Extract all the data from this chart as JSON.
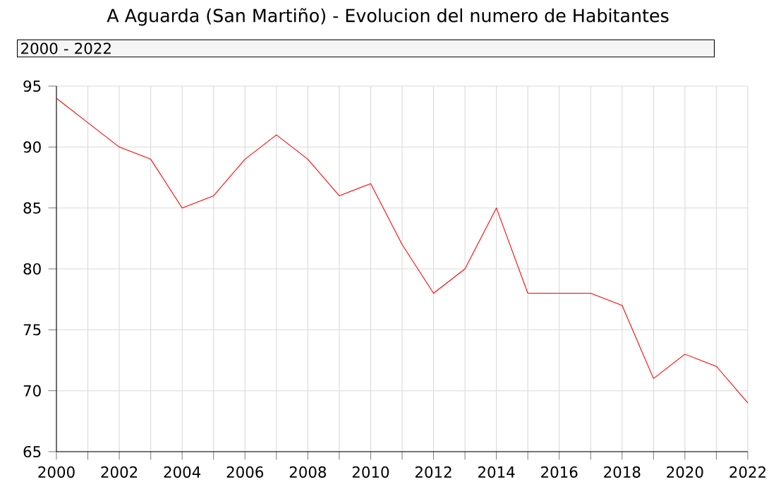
{
  "chart_data": {
    "type": "line",
    "title": "A Aguarda (San Martiño) - Evolucion del numero de Habitantes",
    "annotations": [
      "2000 - 2022"
    ],
    "x": [
      2000,
      2001,
      2002,
      2003,
      2004,
      2005,
      2006,
      2007,
      2008,
      2009,
      2010,
      2011,
      2012,
      2013,
      2014,
      2015,
      2016,
      2017,
      2018,
      2019,
      2020,
      2021,
      2022
    ],
    "series": [
      {
        "color": "#ff0000",
        "values": [
          94,
          92,
          90,
          89,
          85,
          86,
          89,
          91,
          89,
          86,
          87,
          82,
          78,
          80,
          85,
          78,
          78,
          78,
          77,
          71,
          73,
          72,
          69
        ]
      }
    ],
    "xlim": [
      2000,
      2022
    ],
    "ylim": [
      65,
      95
    ],
    "xticks": [
      2000,
      {
        "value": 2001,
        "label": null
      },
      2002,
      {
        "value": 2003,
        "label": null
      },
      2004,
      {
        "value": 2005,
        "label": null
      },
      2006,
      {
        "value": 2007,
        "label": null
      },
      2008,
      {
        "value": 2009,
        "label": null
      },
      2010,
      {
        "value": 2011,
        "label": null
      },
      2012,
      {
        "value": 2013,
        "label": null
      },
      2014,
      {
        "value": 2015,
        "label": null
      },
      2016,
      {
        "value": 2017,
        "label": null
      },
      2018,
      {
        "value": 2019,
        "label": null
      },
      2020,
      {
        "value": 2021,
        "label": null
      },
      2022
    ],
    "yticks": [
      65,
      70,
      75,
      80,
      85,
      90,
      95
    ],
    "grid": true,
    "marker": "none",
    "line_style": "solid"
  }
}
